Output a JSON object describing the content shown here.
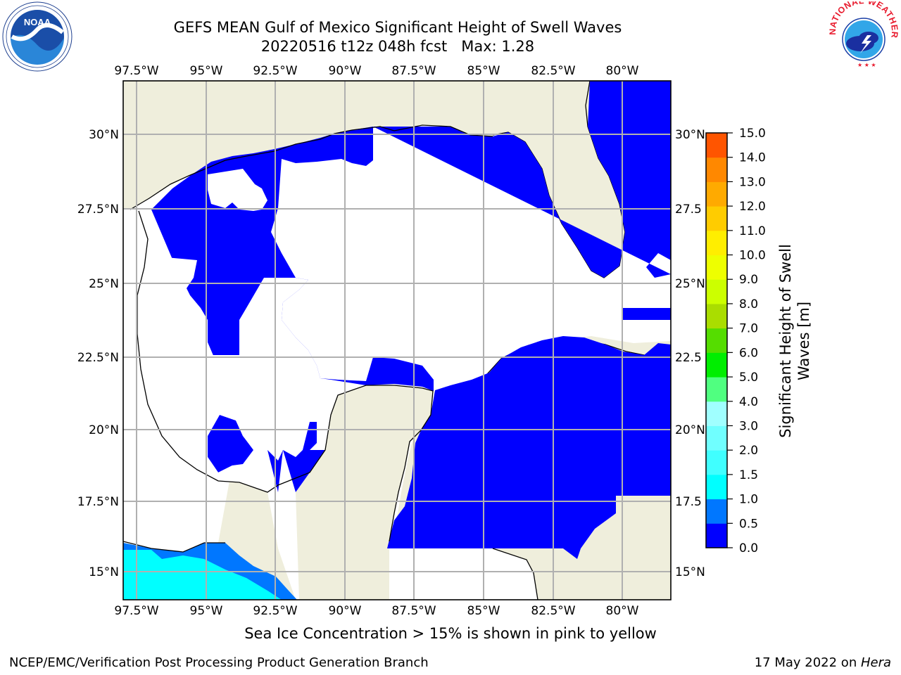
{
  "title": {
    "line1": "GEFS MEAN Gulf of Mexico Significant Height of Swell Waves",
    "line2": "20220516 t12z 048h fcst   Max: 1.28"
  },
  "map": {
    "lon_labels": [
      "97.5°W",
      "95°W",
      "92.5°W",
      "90°W",
      "87.5°W",
      "85°W",
      "82.5°W",
      "80°W"
    ],
    "lat_labels": [
      "30°N",
      "27.5°N",
      "25°N",
      "22.5°N",
      "20°N",
      "17.5°N",
      "15°N"
    ],
    "right_lat_labels": [
      "30°N",
      "27.5",
      "25°N",
      "22.5",
      "20°N",
      "17.5",
      "15°N"
    ],
    "colors": {
      "land": "#efeedc",
      "ocean_low": "#0000ff",
      "grid": "#b0b0b0",
      "coast": "#000000"
    }
  },
  "colorbar": {
    "title_line1": "Significant Height of Swell",
    "title_line2": "Waves [m]",
    "ticks": [
      "0.0",
      "0.5",
      "1.0",
      "1.5",
      "2.0",
      "3.0",
      "4.0",
      "5.0",
      "6.0",
      "7.0",
      "8.0",
      "9.0",
      "10.0",
      "11.0",
      "12.0",
      "13.0",
      "14.0",
      "15.0"
    ],
    "colors": [
      "#0000ff",
      "#0077ff",
      "#00ffff",
      "#40ffff",
      "#70ffff",
      "#a0ffff",
      "#50ff80",
      "#00ee00",
      "#55dd00",
      "#aadd00",
      "#ccff00",
      "#eeff00",
      "#ffee00",
      "#ffcc00",
      "#ffaa00",
      "#ff8800",
      "#ff5500",
      "#ff2200",
      "#ff0000"
    ]
  },
  "caption": "Sea Ice Concentration > 15% is shown in pink to yellow",
  "footer": {
    "left": "NCEP/EMC/Verification Post Processing Product Generation Branch",
    "right_prefix": "17 May 2022 on ",
    "right_host": "Hera"
  },
  "logos": {
    "noaa": "NOAA",
    "nws": "NATIONAL WEATHER SERVICE"
  }
}
